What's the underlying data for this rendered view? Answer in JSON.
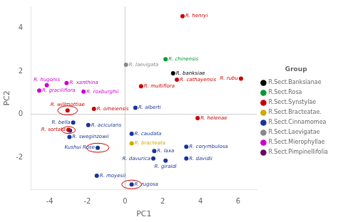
{
  "chart_data": {
    "type": "scatter",
    "xlabel": "PC1",
    "ylabel": "PC2",
    "xlim": [
      -5,
      7
    ],
    "ylim": [
      -3.5,
      5
    ],
    "xticks": [
      -4,
      -2,
      0,
      2,
      4,
      6
    ],
    "yticks": [
      -2,
      0,
      2,
      4
    ],
    "grid": false,
    "legend": "right",
    "legend_title": "Group",
    "marker": "circle",
    "reference_lines": {
      "x": [
        0
      ],
      "y": [
        0
      ]
    },
    "series": [
      {
        "name": "R.Sect.Banksianae",
        "color": "#000000",
        "x": [
          2.55
        ],
        "y": [
          1.9
        ],
        "labels": [
          "R. banksiae"
        ]
      },
      {
        "name": "R.Sect.Rosa",
        "color": "#009933",
        "x": [
          2.15
        ],
        "y": [
          2.55
        ],
        "labels": [
          "R. chinensis"
        ]
      },
      {
        "name": "R.Sect.Synstylae",
        "color": "#cc0000",
        "x": [
          3.05,
          6.15,
          2.75,
          0.85,
          -3.05,
          -1.65,
          3.85,
          -3.0
        ],
        "y": [
          4.55,
          1.65,
          1.6,
          1.3,
          0.18,
          0.25,
          -0.18,
          -0.72
        ],
        "labels": [
          "R. henryi",
          "R. rubu",
          "R. cathayensis",
          "R. multiflora",
          "R. willmottiae",
          "R. omeiensis",
          "R. helenae",
          "R. sortata"
        ]
      },
      {
        "name": "R.Sect.Bracteatae.",
        "color": "#ccaa00",
        "x": [
          0.35
        ],
        "y": [
          -1.35
        ],
        "labels": [
          "R. bracteata"
        ]
      },
      {
        "name": "R.Sect.Cinnamomea",
        "color": "#1a3399",
        "x": [
          0.55,
          -2.75,
          -1.95,
          -2.92,
          0.35,
          -2.95,
          -1.45,
          3.25,
          1.55,
          1.5,
          2.15,
          3.25,
          -1.5,
          0.35
        ],
        "y": [
          0.3,
          -0.38,
          -0.5,
          -0.75,
          -0.9,
          -1.05,
          -1.55,
          -1.5,
          -1.7,
          -2.05,
          -2.15,
          -2.05,
          -2.85,
          -3.25
        ],
        "labels": [
          "R. alberti",
          "R. bella",
          "R. acicularis",
          null,
          "R. caudata",
          "R. sweginzowii",
          "Kushui Rose",
          "R. corymbulosa",
          "R. laxa",
          "R. davurica",
          "R. giraldi",
          "R. davidii",
          "R. moyesii",
          "R. rugosa"
        ]
      },
      {
        "name": "R.Sect.Laevigatae",
        "color": "#888888",
        "x": [
          0.05
        ],
        "y": [
          2.3
        ],
        "labels": [
          "R. laevigata"
        ]
      },
      {
        "name": "R.Sect.Mierophyllae",
        "color": "#cc00cc",
        "x": [
          -4.15,
          -4.55,
          -3.1,
          -2.2
        ],
        "y": [
          1.35,
          1.1,
          1.45,
          1.05
        ],
        "labels": [
          "R. hugonis",
          "R. graciliflora",
          "R. xanthina",
          "R. roxburghii"
        ]
      },
      {
        "name": "R.Sect.Pimpinellifolia",
        "color": "#660066",
        "x": [],
        "y": [],
        "labels": []
      }
    ],
    "ellipses": [
      {
        "cx": -3.05,
        "cy": 0.18,
        "w": 1.05,
        "h": 0.42,
        "color": "#cc0000"
      },
      {
        "cx": -3.0,
        "cy": -0.73,
        "w": 0.72,
        "h": 0.32,
        "color": "#cc0000"
      },
      {
        "cx": -1.45,
        "cy": -1.55,
        "w": 1.2,
        "h": 0.42,
        "color": "#cc0000"
      },
      {
        "cx": 0.35,
        "cy": -3.25,
        "w": 1.05,
        "h": 0.4,
        "color": "#cc0000"
      }
    ]
  }
}
